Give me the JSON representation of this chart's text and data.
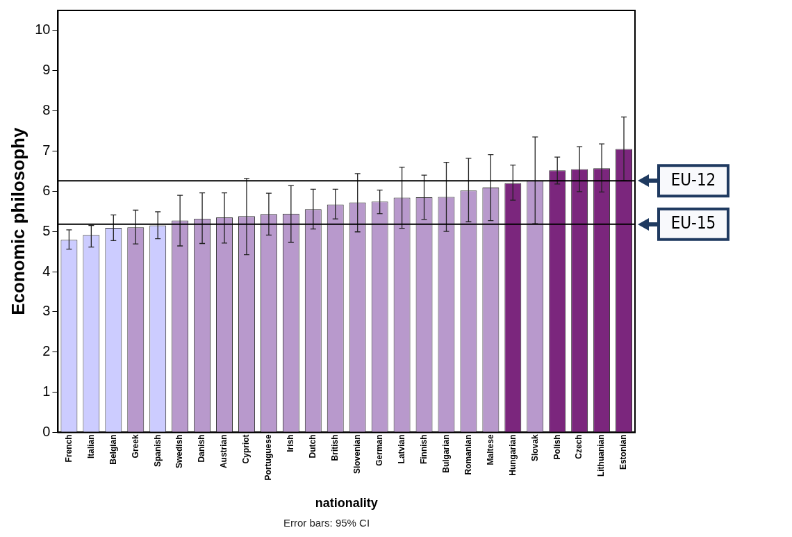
{
  "chart_data": {
    "type": "bar",
    "xlabel": "nationality",
    "ylabel": "Economic philosophy",
    "categories": [
      "French",
      "Italian",
      "Belgian",
      "Greek",
      "Spanish",
      "Swedish",
      "Danish",
      "Austrian",
      "Cypriot",
      "Portuguese",
      "Irish",
      "Dutch",
      "British",
      "Slovenian",
      "German",
      "Latvian",
      "Finnish",
      "Bulgarian",
      "Romanian",
      "Maltese",
      "Hungarian",
      "Slovak",
      "Polish",
      "Czech",
      "Lithuanian",
      "Estonian"
    ],
    "values": [
      4.79,
      4.91,
      5.09,
      5.1,
      5.15,
      5.27,
      5.32,
      5.35,
      5.38,
      5.43,
      5.44,
      5.55,
      5.67,
      5.72,
      5.74,
      5.84,
      5.85,
      5.86,
      6.02,
      6.09,
      6.2,
      6.26,
      6.52,
      6.55,
      6.57,
      7.05
    ],
    "errors": [
      [
        4.56,
        5.04
      ],
      [
        4.61,
        5.15
      ],
      [
        4.77,
        5.41
      ],
      [
        4.69,
        5.53
      ],
      [
        4.82,
        5.49
      ],
      [
        4.64,
        5.9
      ],
      [
        4.7,
        5.96
      ],
      [
        4.71,
        5.96
      ],
      [
        4.42,
        6.32
      ],
      [
        4.91,
        5.95
      ],
      [
        4.73,
        6.14
      ],
      [
        5.06,
        6.05
      ],
      [
        5.31,
        6.05
      ],
      [
        4.99,
        6.44
      ],
      [
        5.44,
        6.03
      ],
      [
        5.08,
        6.6
      ],
      [
        5.3,
        6.4
      ],
      [
        5.0,
        6.72
      ],
      [
        5.24,
        6.82
      ],
      [
        5.27,
        6.91
      ],
      [
        5.78,
        6.65
      ],
      [
        5.19,
        7.35
      ],
      [
        6.18,
        6.85
      ],
      [
        5.99,
        7.11
      ],
      [
        5.98,
        7.18
      ],
      [
        6.26,
        7.85
      ]
    ],
    "colors": [
      "#ccccff",
      "#ccccff",
      "#ccccff",
      "#b899cc",
      "#ccccff",
      "#b899cc",
      "#b899cc",
      "#b899cc",
      "#b899cc",
      "#b899cc",
      "#b899cc",
      "#b899cc",
      "#b899cc",
      "#b899cc",
      "#b899cc",
      "#b899cc",
      "#b899cc",
      "#b899cc",
      "#b899cc",
      "#b899cc",
      "#7b267d",
      "#b899cc",
      "#7b267d",
      "#7b267d",
      "#7b267d",
      "#7b267d"
    ],
    "ylim": [
      0,
      10.5
    ],
    "yticks": [
      0,
      1,
      2,
      3,
      4,
      5,
      6,
      7,
      8,
      9,
      10
    ],
    "grid": false,
    "legend": false,
    "ref_lines": [
      {
        "axis": "y",
        "value": 6.26,
        "label": "EU-12"
      },
      {
        "axis": "y",
        "value": 5.18,
        "label": "EU-15"
      }
    ],
    "annotations": [
      "Error bars: 95% CI"
    ]
  }
}
